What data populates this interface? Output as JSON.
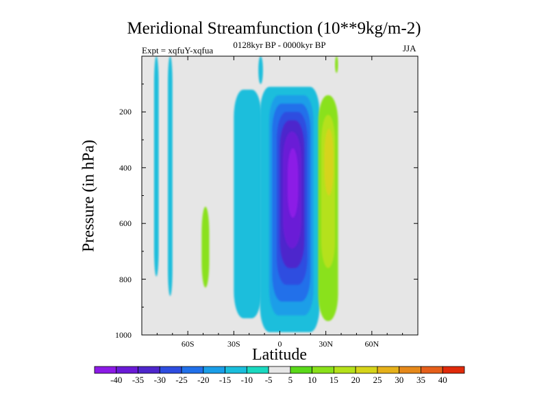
{
  "chart_data": {
    "type": "contour",
    "title": "Meridional Streamfunction (10**9kg/m-2)",
    "left_string": "Expt = xqfuY-xqfua",
    "center_string": "0128kyr BP - 0000kyr BP",
    "right_string": "JJA",
    "xlabel": "Latitude",
    "ylabel": "Pressure (in hPa)",
    "xlim": [
      -90,
      90
    ],
    "ylim": [
      1000,
      0
    ],
    "x_ticks": [
      {
        "value": -60,
        "label": "60S"
      },
      {
        "value": -30,
        "label": "30S"
      },
      {
        "value": 0,
        "label": "0"
      },
      {
        "value": 30,
        "label": "30N"
      },
      {
        "value": 60,
        "label": "60N"
      }
    ],
    "y_ticks": [
      200,
      400,
      600,
      800,
      1000
    ],
    "background_color": "#e6e6e6",
    "colorbar": {
      "levels": [
        -40,
        -35,
        -30,
        -25,
        -20,
        -15,
        -10,
        -5,
        5,
        10,
        15,
        20,
        25,
        30,
        35,
        40
      ],
      "colors": [
        "#8c1ae6",
        "#6a1ad6",
        "#4e26cc",
        "#2e4de0",
        "#2170ea",
        "#1a9ee8",
        "#1abedc",
        "#1ad9c0",
        "#e6e6e6",
        "#5ad91a",
        "#8ae11a",
        "#b5e11a",
        "#d6d41a",
        "#e6b11a",
        "#e6891a",
        "#e65f1a",
        "#e02a0a"
      ]
    },
    "features": [
      {
        "kind": "cell",
        "level": -10,
        "lat_min": -82,
        "lat_max": -79,
        "p_top": 0,
        "p_bottom": 790
      },
      {
        "kind": "cell",
        "level": -10,
        "lat_min": -73,
        "lat_max": -70,
        "p_top": 0,
        "p_bottom": 860
      },
      {
        "kind": "cell",
        "level": 10,
        "lat_min": -51,
        "lat_max": -46,
        "p_top": 540,
        "p_bottom": 830
      },
      {
        "kind": "cell",
        "level": -10,
        "lat_min": -30,
        "lat_max": -12,
        "p_top": 120,
        "p_bottom": 940
      },
      {
        "kind": "cell",
        "level": -10,
        "lat_min": -14,
        "lat_max": -11,
        "p_top": 0,
        "p_bottom": 100
      },
      {
        "kind": "cell",
        "level": -10,
        "lat_min": -13,
        "lat_max": 26,
        "p_top": 110,
        "p_bottom": 990
      },
      {
        "kind": "cell",
        "level": -15,
        "lat_min": -7,
        "lat_max": 22,
        "p_top": 140,
        "p_bottom": 930
      },
      {
        "kind": "cell",
        "level": -20,
        "lat_min": -5,
        "lat_max": 20,
        "p_top": 170,
        "p_bottom": 880
      },
      {
        "kind": "cell",
        "level": -25,
        "lat_min": -2,
        "lat_max": 18,
        "p_top": 200,
        "p_bottom": 820
      },
      {
        "kind": "cell",
        "level": -30,
        "lat_min": 0,
        "lat_max": 16,
        "p_top": 230,
        "p_bottom": 760
      },
      {
        "kind": "cell",
        "level": -35,
        "lat_min": 2,
        "lat_max": 14,
        "p_top": 270,
        "p_bottom": 690
      },
      {
        "kind": "cell",
        "level": -40,
        "lat_min": 5,
        "lat_max": 12,
        "p_top": 330,
        "p_bottom": 580
      },
      {
        "kind": "cell",
        "level": 10,
        "lat_min": 25,
        "lat_max": 38,
        "p_top": 140,
        "p_bottom": 950
      },
      {
        "kind": "cell",
        "level": 15,
        "lat_min": 27,
        "lat_max": 36,
        "p_top": 210,
        "p_bottom": 760
      },
      {
        "kind": "cell",
        "level": 20,
        "lat_min": 29,
        "lat_max": 35,
        "p_top": 260,
        "p_bottom": 500
      },
      {
        "kind": "cell",
        "level": 10,
        "lat_min": 36,
        "lat_max": 38,
        "p_top": 0,
        "p_bottom": 60
      }
    ]
  }
}
